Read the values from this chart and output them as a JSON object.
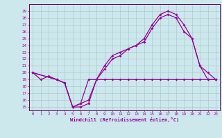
{
  "xlabel": "Windchill (Refroidissement éolien,°C)",
  "bg_color": "#cce8ec",
  "line_color": "#990099",
  "grid_color": "#aacccc",
  "spine_color": "#660066",
  "xlim": [
    -0.5,
    23.5
  ],
  "ylim": [
    14.5,
    30.0
  ],
  "xticks": [
    0,
    1,
    2,
    3,
    4,
    5,
    6,
    7,
    8,
    9,
    10,
    11,
    12,
    13,
    14,
    15,
    16,
    17,
    18,
    19,
    20,
    21,
    22,
    23
  ],
  "yticks": [
    15,
    16,
    17,
    18,
    19,
    20,
    21,
    22,
    23,
    24,
    25,
    26,
    27,
    28,
    29
  ],
  "line1_x": [
    0,
    1,
    2,
    3,
    4,
    5,
    6,
    7,
    8,
    9,
    10,
    11,
    12,
    13,
    14,
    15,
    16,
    17,
    18,
    19,
    20,
    21,
    22,
    23
  ],
  "line1_y": [
    20,
    19,
    19.5,
    19,
    18.5,
    15,
    15,
    15.5,
    19,
    21,
    22.5,
    23,
    23.5,
    24,
    25,
    27,
    28.5,
    29,
    28.5,
    27,
    25,
    21,
    19,
    19
  ],
  "line2_x": [
    0,
    3,
    4,
    5,
    6,
    7,
    8,
    9,
    10,
    11,
    12,
    13,
    14,
    15,
    16,
    17,
    18,
    19,
    20,
    21,
    22,
    23
  ],
  "line2_y": [
    20,
    19,
    18.5,
    15,
    15.5,
    19,
    19,
    19,
    19,
    19,
    19,
    19,
    19,
    19,
    19,
    19,
    19,
    19,
    19,
    19,
    19,
    19
  ],
  "line3_x": [
    0,
    3,
    4,
    5,
    6,
    7,
    8,
    9,
    10,
    11,
    12,
    13,
    14,
    15,
    16,
    17,
    18,
    19,
    20,
    21,
    22,
    23
  ],
  "line3_y": [
    20,
    19,
    18.5,
    15,
    15.5,
    16,
    19,
    20.5,
    22,
    22.5,
    23.5,
    24,
    24.5,
    26.5,
    28,
    28.5,
    28,
    26,
    25,
    21,
    20,
    19
  ]
}
